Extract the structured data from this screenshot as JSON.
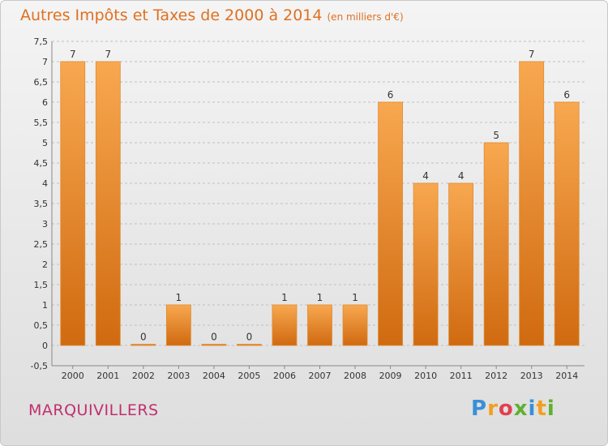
{
  "header": {
    "title": "Autres Impôts et Taxes de 2000 à 2014",
    "unit": "(en milliers d'€)"
  },
  "footer": {
    "city": "MARQUIVILLERS",
    "logo_letters": [
      {
        "ch": "P",
        "color": "#3a8fd8"
      },
      {
        "ch": "r",
        "color": "#f0a020"
      },
      {
        "ch": "o",
        "color": "#e04050"
      },
      {
        "ch": "x",
        "color": "#60b030"
      },
      {
        "ch": "i",
        "color": "#3a8fd8"
      },
      {
        "ch": "t",
        "color": "#f0a020"
      },
      {
        "ch": "i",
        "color": "#60b030"
      }
    ]
  },
  "colors": {
    "bar_light": "#f8a850",
    "bar_dark": "#d06a10",
    "bar_edge": "#e08a30",
    "grid": "#c0c0c0",
    "axis_text": "#333333"
  },
  "chart_data": {
    "type": "bar",
    "categories": [
      "2000",
      "2001",
      "2002",
      "2003",
      "2004",
      "2005",
      "2006",
      "2007",
      "2008",
      "2009",
      "2010",
      "2011",
      "2012",
      "2013",
      "2014"
    ],
    "values": [
      7,
      7,
      0,
      1,
      0,
      0,
      1,
      1,
      1,
      6,
      4,
      4,
      5,
      7,
      6
    ],
    "data_labels": [
      "7",
      "7",
      "0",
      "1",
      "0",
      "0",
      "1",
      "1",
      "1",
      "6",
      "4",
      "4",
      "5",
      "7",
      "6"
    ],
    "title": "Autres Impôts et Taxes de 2000 à 2014",
    "ylim": [
      -0.5,
      7.5
    ],
    "yticks": [
      -0.5,
      0,
      0.5,
      1,
      1.5,
      2,
      2.5,
      3,
      3.5,
      4,
      4.5,
      5,
      5.5,
      6,
      6.5,
      7,
      7.5
    ],
    "ytick_labels": [
      "-0,5",
      "0",
      "0,5",
      "1",
      "1,5",
      "2",
      "2,5",
      "3",
      "3,5",
      "4",
      "4,5",
      "5",
      "5,5",
      "6",
      "6,5",
      "7",
      "7,5"
    ],
    "grid": true,
    "legend": "none"
  }
}
